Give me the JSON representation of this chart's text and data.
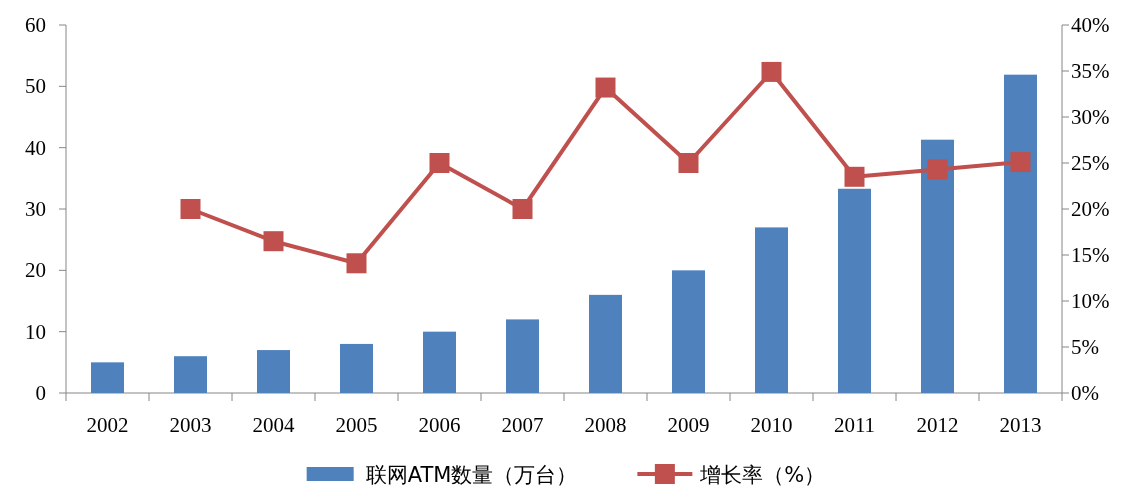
{
  "chart_data": {
    "type": "bar",
    "categories": [
      "2002",
      "2003",
      "2004",
      "2005",
      "2006",
      "2007",
      "2008",
      "2009",
      "2010",
      "2011",
      "2012",
      "2013"
    ],
    "series": [
      {
        "name": "联网ATM数量（万台）",
        "color": "#4f81bd",
        "values": [
          5,
          6,
          7,
          8,
          10,
          12,
          16,
          20,
          27,
          33.3,
          41.3,
          51.9
        ]
      },
      {
        "name": "增长率（%）",
        "type": "line",
        "axis": "y2",
        "marker": "square",
        "color": "#c0504d",
        "values": [
          null,
          20,
          16.5,
          14.1,
          25,
          20,
          33.2,
          25,
          34.9,
          23.5,
          24.3,
          25.1
        ]
      }
    ],
    "ylim": [
      0,
      60
    ],
    "yticks": [
      0,
      10,
      20,
      30,
      40,
      50,
      60
    ],
    "y2lim": [
      0,
      40
    ],
    "y2ticks": [
      {
        "value": 0,
        "label": "0%"
      },
      {
        "value": 5,
        "label": "5%"
      },
      {
        "value": 10,
        "label": "10%"
      },
      {
        "value": 15,
        "label": "15%"
      },
      {
        "value": 20,
        "label": "20%"
      },
      {
        "value": 25,
        "label": "25%"
      },
      {
        "value": 30,
        "label": "30%"
      },
      {
        "value": 35,
        "label": "35%"
      },
      {
        "value": 40,
        "label": "40%"
      }
    ],
    "legend": "bottom",
    "grid": false
  }
}
